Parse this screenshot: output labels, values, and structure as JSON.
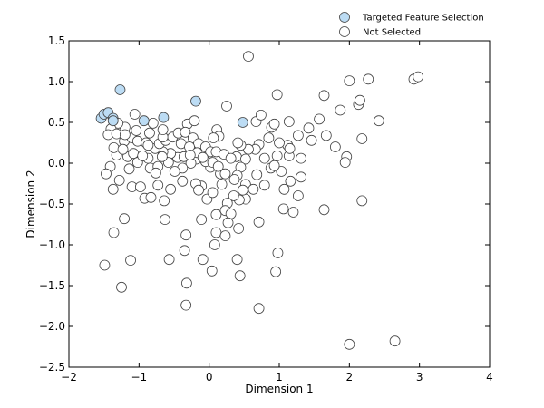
{
  "chart_data": {
    "type": "scatter",
    "title": "",
    "xlabel": "Dimension 1",
    "ylabel": "Dimension 2",
    "xlim": [
      -2,
      4
    ],
    "ylim": [
      -2.5,
      1.5
    ],
    "xticks": [
      -2,
      -1,
      0,
      1,
      2,
      3,
      4
    ],
    "yticks": [
      -2.5,
      -2.0,
      -1.5,
      -1.0,
      -0.5,
      0.0,
      0.5,
      1.0,
      1.5
    ],
    "xtick_labels": [
      "−2",
      "−1",
      "0",
      "1",
      "2",
      "3",
      "4"
    ],
    "ytick_labels": [
      "−2.5",
      "−2.0",
      "−1.5",
      "−1.0",
      "−0.5",
      "0.0",
      "0.5",
      "1.0",
      "1.5"
    ],
    "grid": false,
    "legend_position": "top-right",
    "series": [
      {
        "name": "Targeted Feature Selection",
        "color": "#bcdcf4",
        "edgecolor": "#444444",
        "points": [
          [
            -1.54,
            0.55
          ],
          [
            -1.5,
            0.6
          ],
          [
            -1.44,
            0.62
          ],
          [
            -1.37,
            0.55
          ],
          [
            -1.37,
            0.52
          ],
          [
            -1.27,
            0.9
          ],
          [
            -0.93,
            0.52
          ],
          [
            -0.65,
            0.56
          ],
          [
            -0.19,
            0.76
          ],
          [
            0.48,
            0.5
          ]
        ]
      },
      {
        "name": "Not Selected",
        "color": "#ffffff",
        "edgecolor": "#444444",
        "points": [
          [
            0.56,
            1.31
          ],
          [
            2.0,
            1.01
          ],
          [
            2.27,
            1.03
          ],
          [
            2.92,
            1.03
          ],
          [
            2.98,
            1.06
          ],
          [
            0.97,
            0.84
          ],
          [
            1.64,
            0.83
          ],
          [
            2.13,
            0.72
          ],
          [
            2.15,
            0.77
          ],
          [
            1.57,
            0.54
          ],
          [
            1.87,
            0.65
          ],
          [
            2.42,
            0.52
          ],
          [
            0.25,
            0.7
          ],
          [
            -1.06,
            0.6
          ],
          [
            -0.8,
            0.49
          ],
          [
            -0.31,
            0.48
          ],
          [
            -0.21,
            0.52
          ],
          [
            0.11,
            0.41
          ],
          [
            0.67,
            0.51
          ],
          [
            0.74,
            0.59
          ],
          [
            0.89,
            0.44
          ],
          [
            0.93,
            0.48
          ],
          [
            1.14,
            0.51
          ],
          [
            1.42,
            0.43
          ],
          [
            1.67,
            0.34
          ],
          [
            2.18,
            0.3
          ],
          [
            1.8,
            0.2
          ],
          [
            1.96,
            0.08
          ],
          [
            1.94,
            0.01
          ],
          [
            1.46,
            0.28
          ],
          [
            1.27,
            0.34
          ],
          [
            1.12,
            0.22
          ],
          [
            1.0,
            0.25
          ],
          [
            0.85,
            0.31
          ],
          [
            0.71,
            0.23
          ],
          [
            0.66,
            0.17
          ],
          [
            0.56,
            0.17
          ],
          [
            0.45,
            0.22
          ],
          [
            0.41,
            0.25
          ],
          [
            0.39,
            0.08
          ],
          [
            0.52,
            0.05
          ],
          [
            0.79,
            0.06
          ],
          [
            0.97,
            0.09
          ],
          [
            1.14,
            0.09
          ],
          [
            1.15,
            0.18
          ],
          [
            1.31,
            0.06
          ],
          [
            1.03,
            -0.1
          ],
          [
            0.88,
            -0.06
          ],
          [
            0.68,
            -0.14
          ],
          [
            0.45,
            -0.05
          ],
          [
            0.4,
            -0.15
          ],
          [
            0.52,
            -0.26
          ],
          [
            0.63,
            -0.32
          ],
          [
            0.52,
            -0.44
          ],
          [
            0.43,
            -0.45
          ],
          [
            0.35,
            -0.4
          ],
          [
            0.26,
            -0.49
          ],
          [
            0.23,
            -0.58
          ],
          [
            0.31,
            -0.62
          ],
          [
            0.1,
            -0.63
          ],
          [
            -0.03,
            -0.44
          ],
          [
            0.05,
            -0.36
          ],
          [
            -0.11,
            -0.28
          ],
          [
            0.18,
            -0.26
          ],
          [
            0.16,
            -0.13
          ],
          [
            0.02,
            -0.05
          ],
          [
            -0.05,
            0.02
          ],
          [
            -0.18,
            0.05
          ],
          [
            -0.26,
            0.0
          ],
          [
            -0.38,
            -0.06
          ],
          [
            -0.45,
            0.07
          ],
          [
            -0.55,
            0.12
          ],
          [
            -0.66,
            0.14
          ],
          [
            -0.77,
            0.18
          ],
          [
            -0.87,
            0.06
          ],
          [
            -1.02,
            0.01
          ],
          [
            -1.1,
            -0.29
          ],
          [
            -0.98,
            -0.29
          ],
          [
            -0.92,
            -0.43
          ],
          [
            -0.64,
            -0.46
          ],
          [
            -0.55,
            -0.32
          ],
          [
            -0.73,
            -0.27
          ],
          [
            -0.38,
            -0.22
          ],
          [
            -0.19,
            -0.25
          ],
          [
            -0.15,
            -0.33
          ],
          [
            0.27,
            -0.73
          ],
          [
            -0.11,
            -0.69
          ],
          [
            -0.33,
            -0.88
          ],
          [
            -0.35,
            -1.07
          ],
          [
            -0.09,
            -1.18
          ],
          [
            0.08,
            -1.0
          ],
          [
            0.1,
            -0.85
          ],
          [
            0.23,
            -0.89
          ],
          [
            0.42,
            -0.8
          ],
          [
            0.71,
            -0.72
          ],
          [
            0.98,
            -1.1
          ],
          [
            1.06,
            -0.56
          ],
          [
            1.2,
            -0.6
          ],
          [
            1.27,
            -0.4
          ],
          [
            1.31,
            -0.17
          ],
          [
            1.16,
            -0.22
          ],
          [
            1.07,
            -0.32
          ],
          [
            1.64,
            -0.57
          ],
          [
            2.18,
            -0.46
          ],
          [
            0.4,
            -1.18
          ],
          [
            0.44,
            -1.38
          ],
          [
            0.04,
            -1.32
          ],
          [
            -0.32,
            -1.47
          ],
          [
            -0.33,
            -1.74
          ],
          [
            -0.57,
            -1.18
          ],
          [
            -1.12,
            -1.19
          ],
          [
            -1.49,
            -1.25
          ],
          [
            -1.25,
            -1.52
          ],
          [
            -1.36,
            -0.85
          ],
          [
            -1.21,
            -0.68
          ],
          [
            -1.37,
            -0.32
          ],
          [
            -1.28,
            -0.21
          ],
          [
            -1.14,
            -0.07
          ],
          [
            -1.41,
            -0.04
          ],
          [
            -1.47,
            -0.13
          ],
          [
            -1.32,
            0.1
          ],
          [
            -1.16,
            0.08
          ],
          [
            -1.36,
            0.19
          ],
          [
            -1.21,
            0.27
          ],
          [
            -1.1,
            0.31
          ],
          [
            -1.02,
            0.27
          ],
          [
            -0.9,
            0.25
          ],
          [
            -0.71,
            0.24
          ],
          [
            -0.62,
            0.28
          ],
          [
            -0.52,
            0.32
          ],
          [
            -0.44,
            0.37
          ],
          [
            -0.34,
            0.38
          ],
          [
            -0.23,
            0.31
          ],
          [
            -0.15,
            0.24
          ],
          [
            -0.05,
            0.2
          ],
          [
            0.02,
            0.14
          ],
          [
            0.1,
            0.14
          ],
          [
            0.21,
            0.11
          ],
          [
            0.31,
            0.06
          ],
          [
            0.14,
            0.33
          ],
          [
            0.06,
            0.31
          ],
          [
            -0.36,
            0.08
          ],
          [
            -0.66,
            0.32
          ],
          [
            -0.66,
            0.41
          ],
          [
            -0.85,
            0.37
          ],
          [
            -1.04,
            0.4
          ],
          [
            -1.2,
            0.44
          ],
          [
            -1.3,
            0.49
          ],
          [
            -1.4,
            0.42
          ],
          [
            -1.44,
            0.35
          ],
          [
            -1.32,
            0.36
          ],
          [
            -1.2,
            0.35
          ],
          [
            -1.08,
            0.12
          ],
          [
            -0.95,
            0.09
          ],
          [
            -0.84,
            -0.06
          ],
          [
            -0.73,
            -0.04
          ],
          [
            -0.58,
            0.01
          ],
          [
            -0.49,
            -0.1
          ],
          [
            -0.4,
            0.24
          ],
          [
            -0.28,
            0.2
          ],
          [
            -0.17,
            0.13
          ],
          [
            -0.09,
            0.07
          ],
          [
            0.05,
            0.01
          ],
          [
            0.13,
            -0.04
          ],
          [
            0.23,
            -0.13
          ],
          [
            0.36,
            -0.2
          ],
          [
            0.48,
            -0.33
          ],
          [
            -0.76,
            -0.12
          ],
          [
            -0.83,
            -0.42
          ],
          [
            -0.63,
            -0.69
          ],
          [
            0.95,
            -1.33
          ],
          [
            0.71,
            -1.78
          ],
          [
            2.0,
            -2.22
          ],
          [
            2.65,
            -2.18
          ],
          [
            -0.27,
            0.1
          ],
          [
            -0.67,
            0.08
          ],
          [
            -0.87,
            0.22
          ],
          [
            -1.23,
            0.17
          ],
          [
            0.79,
            -0.27
          ],
          [
            0.93,
            -0.03
          ]
        ]
      }
    ]
  }
}
